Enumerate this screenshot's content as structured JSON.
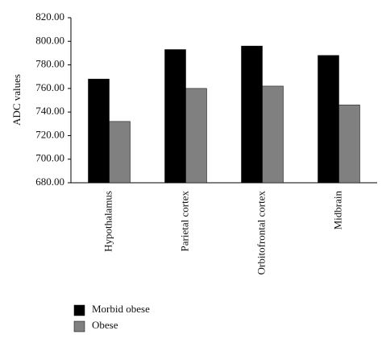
{
  "chart_data": {
    "type": "bar",
    "y_label": "ADC values",
    "categories": [
      "Hypothalamus",
      "Parietal cortex",
      "Orbitofrontal cortex",
      "Midbrain"
    ],
    "series": [
      {
        "name": "Morbid obese",
        "color": "#000000",
        "values": [
          768,
          793,
          796,
          788
        ]
      },
      {
        "name": "Obese",
        "color": "#808080",
        "values": [
          732,
          760,
          762,
          746
        ]
      }
    ],
    "ylim": [
      680,
      820
    ],
    "yticks": [
      {
        "value": 680,
        "label": "680.00"
      },
      {
        "value": 700,
        "label": "700.00"
      },
      {
        "value": 720,
        "label": "720.00"
      },
      {
        "value": 740,
        "label": "740.00"
      },
      {
        "value": 760,
        "label": "760.00"
      },
      {
        "value": 780,
        "label": "780.00"
      },
      {
        "value": 800,
        "label": "800.00"
      },
      {
        "value": 820,
        "label": "820.00"
      }
    ],
    "grid": false,
    "legend": "bottom-left"
  }
}
